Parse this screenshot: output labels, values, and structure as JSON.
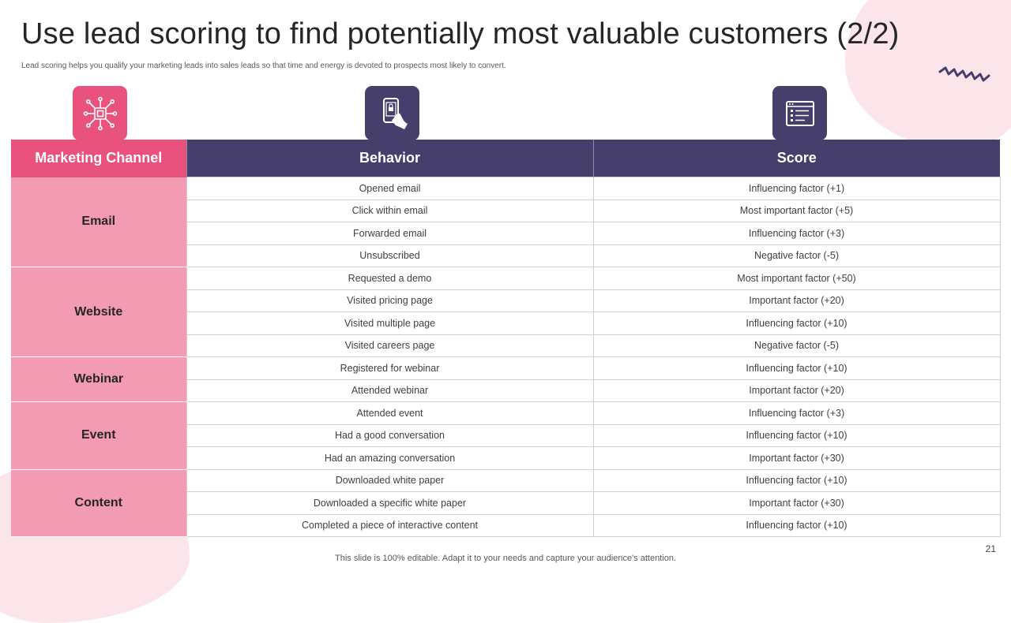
{
  "title": "Use lead scoring to find potentially most valuable customers (2/2)",
  "subtitle": "Lead scoring helps you qualify your marketing leads into sales leads so that time and energy is devoted to prospects most likely to convert.",
  "icons": {
    "channel": "network-hub-icon",
    "behavior": "hand-holding-phone-icon",
    "score": "checklist-window-icon"
  },
  "colors": {
    "accent_pink": "#e8527c",
    "channel_cell_pink": "#f29bb3",
    "header_purple": "#463f6b"
  },
  "table": {
    "headers": {
      "channel": "Marketing Channel",
      "behavior": "Behavior",
      "score": "Score"
    },
    "groups": [
      {
        "channel": "Email",
        "rows": [
          {
            "behavior": "Opened  email",
            "score": "Influencing  factor (+1)"
          },
          {
            "behavior": "Click within email",
            "score": "Most important factor (+5)"
          },
          {
            "behavior": "Forwarded  email",
            "score": "Influencing  factor (+3)"
          },
          {
            "behavior": "Unsubscribed",
            "score": "Negative  factor (-5)"
          }
        ]
      },
      {
        "channel": "Website",
        "rows": [
          {
            "behavior": "Requested  a demo",
            "score": "Most important factor (+50)"
          },
          {
            "behavior": "Visited pricing page",
            "score": "Important  factor (+20)"
          },
          {
            "behavior": "Visited multiple   page",
            "score": "Influencing  factor (+10)"
          },
          {
            "behavior": "Visited careers  page",
            "score": "Negative  factor (-5)"
          }
        ]
      },
      {
        "channel": "Webinar",
        "rows": [
          {
            "behavior": "Registered for webinar",
            "score": "Influencing  factor (+10)"
          },
          {
            "behavior": "Attended webinar",
            "score": "Important  factor (+20)"
          }
        ]
      },
      {
        "channel": "Event",
        "rows": [
          {
            "behavior": "Attended event",
            "score": "Influencing  factor (+3)"
          },
          {
            "behavior": "Had a good conversation",
            "score": "Influencing  factor (+10)"
          },
          {
            "behavior": "Had an amazing conversation",
            "score": "Important  factor (+30)"
          }
        ]
      },
      {
        "channel": "Content",
        "rows": [
          {
            "behavior": "Downloaded  white paper",
            "score": "Influencing  factor (+10)"
          },
          {
            "behavior": "Downloaded  a specific white paper",
            "score": "Important  factor (+30)"
          },
          {
            "behavior": "Completed  a piece of interactive  content",
            "score": "Influencing  factor (+10)"
          }
        ]
      }
    ]
  },
  "page_number": "21",
  "footer": "This slide is 100% editable. Adapt it to your needs and capture your audience's attention."
}
